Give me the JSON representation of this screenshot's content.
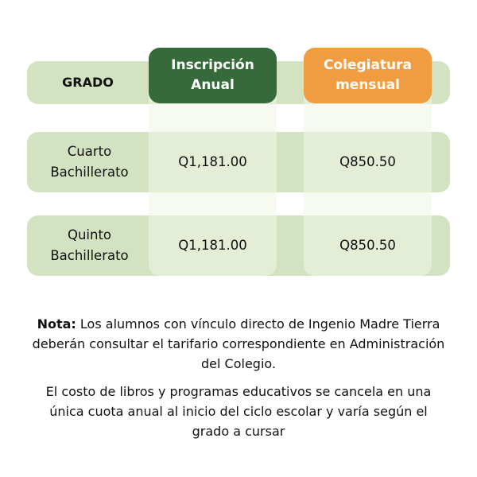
{
  "colors": {
    "band": "#d3e2c0",
    "inscripcion_header": "#376a3a",
    "colegiatura_header": "#f09c40"
  },
  "table": {
    "headers": [
      "GRADO",
      "Inscripción Anual",
      "Colegiatura mensual"
    ],
    "rows": [
      {
        "grado": "Cuarto Bachillerato",
        "inscripcion": "Q1,181.00",
        "colegiatura": "Q850.50"
      },
      {
        "grado": "Quinto Bachillerato",
        "inscripcion": "Q1,181.00",
        "colegiatura": "Q850.50"
      }
    ]
  },
  "note": {
    "label": "Nota:",
    "text": " Los alumnos con vínculo directo de Ingenio Madre Tierra deberán consultar el tarifario correspondiente en Administración del Colegio.",
    "books": "El costo de libros y programas educativos se cancela en una única cuota anual al inicio del ciclo escolar y varía según el grado a cursar"
  }
}
